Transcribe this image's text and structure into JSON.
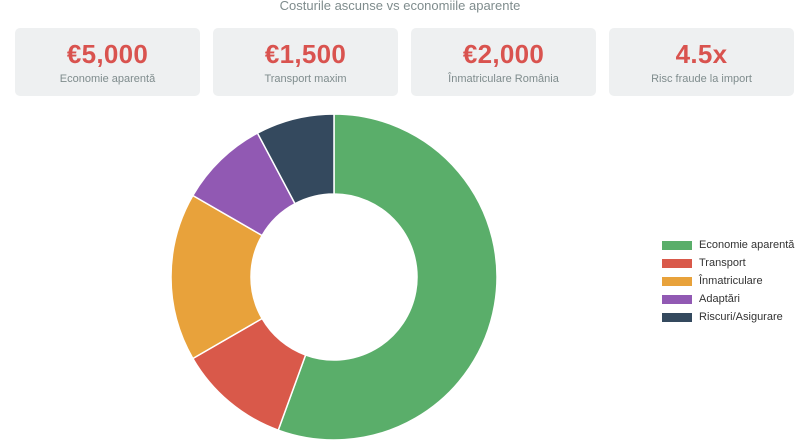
{
  "header": {
    "subtitle": "Costurile ascunse vs economiile aparente"
  },
  "cards": [
    {
      "value": "€5,000",
      "label": "Economie aparentă"
    },
    {
      "value": "€1,500",
      "label": "Transport maxim"
    },
    {
      "value": "€2,000",
      "label": "Înmatriculare România"
    },
    {
      "value": "4.5x",
      "label": "Risc fraude la import"
    }
  ],
  "chart_data": {
    "type": "pie",
    "donut": true,
    "categories": [
      "Economie aparentă",
      "Transport",
      "Înmatriculare",
      "Adaptări",
      "Riscuri/Asigurare"
    ],
    "values": [
      5000,
      1000,
      1500,
      800,
      700
    ],
    "colors": [
      "#5aae6a",
      "#d9594a",
      "#e8a23b",
      "#9159b3",
      "#34495e"
    ],
    "legend": "right"
  }
}
